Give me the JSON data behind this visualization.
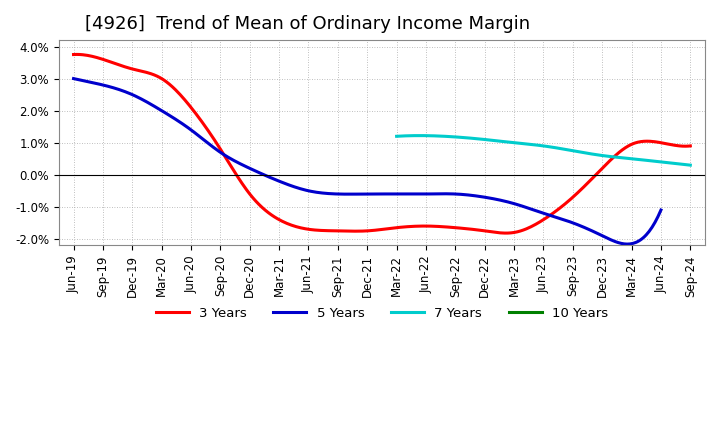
{
  "title": "[4926]  Trend of Mean of Ordinary Income Margin",
  "ylim": [
    -0.022,
    0.042
  ],
  "yticks": [
    -0.02,
    -0.01,
    0.0,
    0.01,
    0.02,
    0.03,
    0.04
  ],
  "ytick_labels": [
    "-2.0%",
    "-1.0%",
    "0.0%",
    "1.0%",
    "2.0%",
    "3.0%",
    "4.0%"
  ],
  "x_labels": [
    "Jun-19",
    "Sep-19",
    "Dec-19",
    "Mar-20",
    "Jun-20",
    "Sep-20",
    "Dec-20",
    "Mar-21",
    "Jun-21",
    "Sep-21",
    "Dec-21",
    "Mar-22",
    "Jun-22",
    "Sep-22",
    "Dec-22",
    "Mar-23",
    "Jun-23",
    "Sep-23",
    "Dec-23",
    "Mar-24",
    "Jun-24",
    "Sep-24"
  ],
  "series_3y_x": [
    0,
    1,
    2,
    3,
    4,
    5,
    6,
    7,
    8,
    9,
    10,
    11,
    12,
    13,
    14,
    15,
    16,
    17,
    18,
    19,
    20,
    21
  ],
  "series_3y_y": [
    0.0375,
    0.036,
    0.033,
    0.03,
    0.021,
    0.008,
    -0.006,
    -0.014,
    -0.017,
    -0.0175,
    -0.0175,
    -0.0165,
    -0.016,
    -0.0165,
    -0.0175,
    -0.018,
    -0.014,
    -0.007,
    0.002,
    0.0095,
    0.01,
    0.009
  ],
  "series_5y_x": [
    0,
    1,
    2,
    3,
    4,
    5,
    6,
    7,
    8,
    9,
    10,
    11,
    12,
    13,
    14,
    15,
    16,
    17,
    18,
    19,
    20
  ],
  "series_5y_y": [
    0.03,
    0.028,
    0.025,
    0.02,
    0.014,
    0.007,
    0.002,
    -0.002,
    -0.005,
    -0.006,
    -0.006,
    -0.006,
    -0.006,
    -0.006,
    -0.007,
    -0.009,
    -0.012,
    -0.015,
    -0.019,
    -0.0215,
    -0.011
  ],
  "series_7y_x": [
    11,
    12,
    13,
    14,
    15,
    16,
    17,
    18,
    19,
    20,
    21
  ],
  "series_7y_y": [
    0.012,
    0.0122,
    0.0118,
    0.011,
    0.01,
    0.009,
    0.0075,
    0.006,
    0.005,
    0.004,
    0.003
  ],
  "series_10y_x": [],
  "series_10y_y": [],
  "color_3y": "#FF0000",
  "color_5y": "#0000CC",
  "color_7y": "#00CCCC",
  "color_10y": "#008000",
  "legend_entries": [
    "3 Years",
    "5 Years",
    "7 Years",
    "10 Years"
  ],
  "legend_colors": [
    "#FF0000",
    "#0000CC",
    "#00CCCC",
    "#008000"
  ],
  "background_color": "#FFFFFF",
  "plot_bg_color": "#FFFFFF",
  "grid_color": "#AAAAAA",
  "title_fontsize": 13,
  "tick_fontsize": 8.5,
  "linewidth": 2.2
}
